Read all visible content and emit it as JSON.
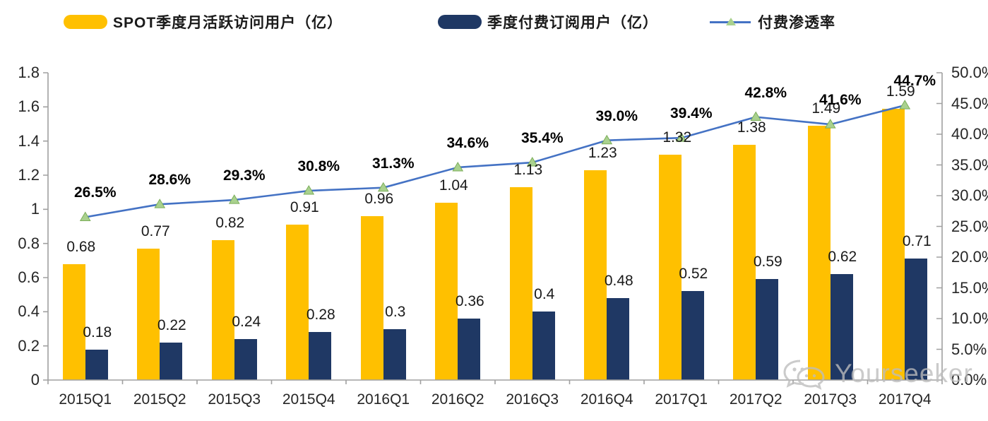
{
  "legend": [
    {
      "label": "SPOT季度月活跃访问用户（亿）",
      "color": "#FFC000",
      "type": "bar"
    },
    {
      "label": "季度付费订阅用户（亿）",
      "color": "#1F3864",
      "type": "bar"
    },
    {
      "label": "付费渗透率",
      "color": "#4472C4",
      "marker_color": "#A9D18E",
      "type": "line"
    }
  ],
  "watermark": {
    "icon": "wechat-icon",
    "text": "Yourseeker",
    "color": "#bdbdbd"
  },
  "colors": {
    "mau_bar": "#FFC000",
    "subs_bar": "#1F3864",
    "penetration_line": "#4472C4",
    "penetration_marker": "#A9D18E",
    "penetration_marker_edge": "#7CAE5A",
    "axis": "#A0A0A0",
    "label_text": "#1a1a1a"
  },
  "chart_data": {
    "type": "bar",
    "subtype": "grouped bars + line on secondary axis",
    "categories": [
      "2015Q1",
      "2015Q2",
      "2015Q3",
      "2015Q4",
      "2016Q1",
      "2016Q2",
      "2016Q3",
      "2016Q4",
      "2017Q1",
      "2017Q2",
      "2017Q3",
      "2017Q4"
    ],
    "series": [
      {
        "name": "SPOT季度月活跃访问用户（亿）",
        "type": "bar",
        "axis": "left",
        "color": "#FFC000",
        "values": [
          0.68,
          0.77,
          0.82,
          0.91,
          0.96,
          1.04,
          1.13,
          1.23,
          1.32,
          1.38,
          1.49,
          1.59
        ],
        "labels": [
          "0.68",
          "0.77",
          "0.82",
          "0.91",
          "0.96",
          "1.04",
          "1.13",
          "1.23",
          "1.32",
          "1.38",
          "1.49",
          "1.59"
        ]
      },
      {
        "name": "季度付费订阅用户（亿）",
        "type": "bar",
        "axis": "left",
        "color": "#1F3864",
        "values": [
          0.18,
          0.22,
          0.24,
          0.28,
          0.3,
          0.36,
          0.4,
          0.48,
          0.52,
          0.59,
          0.62,
          0.71
        ],
        "labels": [
          "0.18",
          "0.22",
          "0.24",
          "0.28",
          "0.3",
          "0.36",
          "0.4",
          "0.48",
          "0.52",
          "0.59",
          "0.62",
          "0.71"
        ]
      },
      {
        "name": "付费渗透率",
        "type": "line",
        "axis": "right",
        "color": "#4472C4",
        "values": [
          26.5,
          28.6,
          29.3,
          30.8,
          31.3,
          34.6,
          35.4,
          39.0,
          39.4,
          42.8,
          41.6,
          44.7
        ],
        "labels": [
          "26.5%",
          "28.6%",
          "29.3%",
          "30.8%",
          "31.3%",
          "34.6%",
          "35.4%",
          "39.0%",
          "39.4%",
          "42.8%",
          "41.6%",
          "44.7%"
        ]
      }
    ],
    "left_axis": {
      "min": 0,
      "max": 1.8,
      "step": 0.2,
      "ticks": [
        "0",
        "0.2",
        "0.4",
        "0.6",
        "0.8",
        "1",
        "1.2",
        "1.4",
        "1.6",
        "1.8"
      ]
    },
    "right_axis": {
      "min": 0,
      "max": 50,
      "step": 5,
      "ticks": [
        "0.0%",
        "5.0%",
        "10.0%",
        "15.0%",
        "20.0%",
        "25.0%",
        "30.0%",
        "35.0%",
        "40.0%",
        "45.0%",
        "50.0%"
      ]
    },
    "grid": false,
    "legend_position": "top",
    "title": ""
  }
}
